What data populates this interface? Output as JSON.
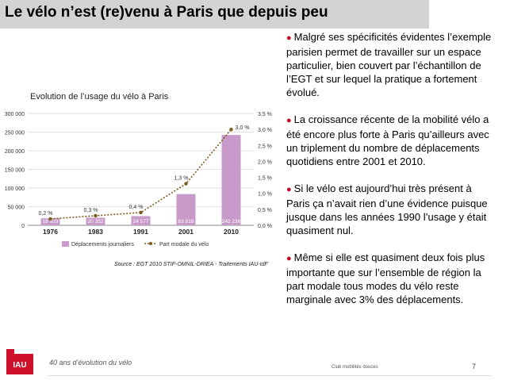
{
  "page": {
    "title": "Le vélo n’est (re)venu à Paris que depuis peu",
    "footer_left": "40 ans d’évolution du vélo",
    "footer_center": "Club mobilités douces",
    "page_number": "7",
    "logo_text": "IAU"
  },
  "colors": {
    "bar": "#c89ac9",
    "line": "#7a5a1e",
    "accent": "#c0001d"
  },
  "chart_title": "Evolution de l’usage du vélo à Paris",
  "source": "Source : EGT 2010 STIF-OMNIL-DRIEA - Traitements IAU-IdF",
  "chart_data": {
    "type": "bar",
    "categories": [
      "1976",
      "1983",
      "1991",
      "2001",
      "2010"
    ],
    "series": [
      {
        "name": "Déplacements journaliers",
        "type": "bar",
        "values": [
          18923,
          20352,
          24577,
          83818,
          242238
        ],
        "labels": [
          "18 923",
          "20 352",
          "24 577",
          "83 818",
          "242 238"
        ]
      },
      {
        "name": "Part modale du vélo",
        "type": "line",
        "axis": "right",
        "values": [
          0.2,
          0.3,
          0.4,
          1.3,
          3.0
        ],
        "labels": [
          "0,2 %",
          "0,3 %",
          "0,4 %",
          "1,3 %",
          "3,0 %"
        ]
      }
    ],
    "ylim": [
      0,
      300000
    ],
    "yticks": [
      "0",
      "50 000",
      "100 000",
      "150 000",
      "200 000",
      "250 000",
      "300 000"
    ],
    "y2lim": [
      0,
      3.5
    ],
    "y2ticks": [
      "0,0 %",
      "0,5 %",
      "1,0 %",
      "1,5 %",
      "2,0 %",
      "2,5 %",
      "3,0 %",
      "3,5 %"
    ],
    "grid": true,
    "legend": "bottom"
  },
  "bullets": [
    "Malgré ses spécificités évidentes l’exemple parisien permet de travailler sur un espace particulier, bien couvert par l’échantillon de l’EGT et sur lequel la pratique a fortement évolué.",
    "La croissance récente de la mobilité vélo a été encore plus forte à Paris qu’ailleurs avec un triplement du nombre de déplacements quotidiens entre 2001 et 2010.",
    "Si le vélo est aujourd’hui très présent à Paris ça n’avait rien d’une évidence puisque jusque dans les années 1990 l’usage y était quasiment nul.",
    "Même si elle est quasiment deux fois plus importante que sur l’ensemble de région la part modale tous modes du vélo reste marginale avec 3% des déplacements."
  ]
}
